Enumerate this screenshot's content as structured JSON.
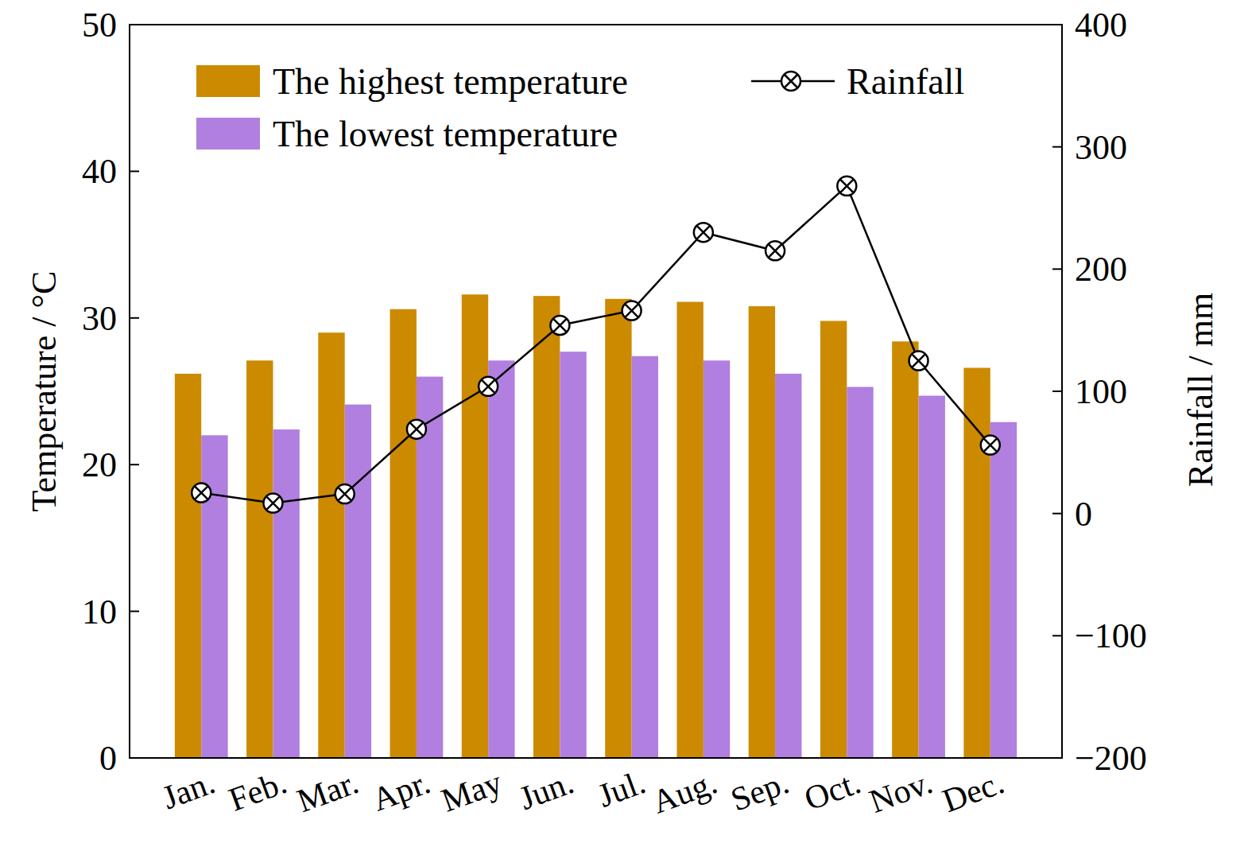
{
  "chart_data": {
    "type": "bar",
    "categories": [
      "Jan.",
      "Feb.",
      "Mar.",
      "Apr.",
      "May",
      "Jun.",
      "Jul.",
      "Aug.",
      "Sep.",
      "Oct.",
      "Nov.",
      "Dec."
    ],
    "series": [
      {
        "name": "The highest temperature",
        "type": "bar",
        "color": "#cc8a00",
        "values": [
          26.2,
          27.1,
          29.0,
          30.6,
          31.6,
          31.5,
          31.3,
          31.1,
          30.8,
          29.8,
          28.4,
          26.6
        ]
      },
      {
        "name": "The lowest temperature",
        "type": "bar",
        "color": "#b07fe0",
        "values": [
          22.0,
          22.4,
          24.1,
          26.0,
          27.1,
          27.7,
          27.4,
          27.1,
          26.2,
          25.3,
          24.7,
          22.9
        ]
      },
      {
        "name": "Rainfall",
        "type": "line",
        "axis": "y2",
        "color": "#000000",
        "marker": "circle-x",
        "line_style": "solid",
        "values": [
          17,
          8.5,
          16,
          69,
          104,
          154,
          166,
          230,
          215,
          268,
          125,
          56
        ]
      }
    ],
    "y_label": "Temperature / °C",
    "y2_label": "Rainfall / mm",
    "ylim": [
      0,
      50
    ],
    "yticks": [
      0,
      10,
      20,
      30,
      40,
      50
    ],
    "y2lim": [
      -200,
      400
    ],
    "y2ticks": [
      {
        "value": -200,
        "label": "−200"
      },
      {
        "value": -100,
        "label": "−100"
      },
      0,
      100,
      200,
      300,
      400
    ],
    "legend": "upper left",
    "grid": false
  }
}
